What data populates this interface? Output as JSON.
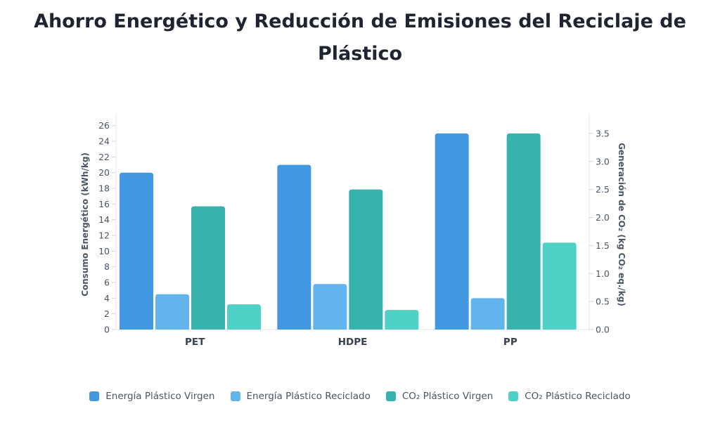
{
  "title": "Ahorro Energético y Reducción de Emisiones del Reciclaje de Plástico",
  "chart_data": {
    "type": "bar",
    "title": "Ahorro Energético y Reducción de Emisiones del Reciclaje de Plástico",
    "categories": [
      "PET",
      "HDPE",
      "PP"
    ],
    "series": [
      {
        "name": "Energía Plástico Virgen",
        "axis": "left",
        "color": "#4299e1",
        "values": [
          20,
          21,
          25
        ]
      },
      {
        "name": "Energía Plástico Reciclado",
        "axis": "left",
        "color": "#63b3ed",
        "values": [
          4.5,
          5.8,
          4.0
        ]
      },
      {
        "name": "CO₂ Plástico Virgen",
        "axis": "right",
        "color": "#38b2ac",
        "values": [
          2.2,
          2.5,
          3.5
        ]
      },
      {
        "name": "CO₂ Plástico Reciclado",
        "axis": "right",
        "color": "#4fd1c5",
        "values": [
          0.45,
          0.35,
          1.55
        ]
      }
    ],
    "y_left": {
      "label": "Consumo Energético (kWh/kg)",
      "ylim": [
        0,
        27.5
      ],
      "ticks": [
        0,
        2,
        4,
        6,
        8,
        10,
        12,
        14,
        16,
        18,
        20,
        22,
        24,
        26
      ],
      "tick_labels": [
        "0",
        "2",
        "4",
        "6",
        "8",
        "10",
        "12",
        "14",
        "16",
        "18",
        "20",
        "22",
        "24",
        "26"
      ]
    },
    "y_right": {
      "label": "Generación de CO₂ (kg CO₂ eq./kg)",
      "ylim": [
        0,
        3.85
      ],
      "ticks": [
        0,
        0.5,
        1,
        1.5,
        2,
        2.5,
        3,
        3.5
      ],
      "tick_labels": [
        "0.0",
        "0.5",
        "1.0",
        "1.5",
        "2.0",
        "2.5",
        "3.0",
        "3.5"
      ]
    },
    "grid": false,
    "legend_position": "bottom"
  }
}
